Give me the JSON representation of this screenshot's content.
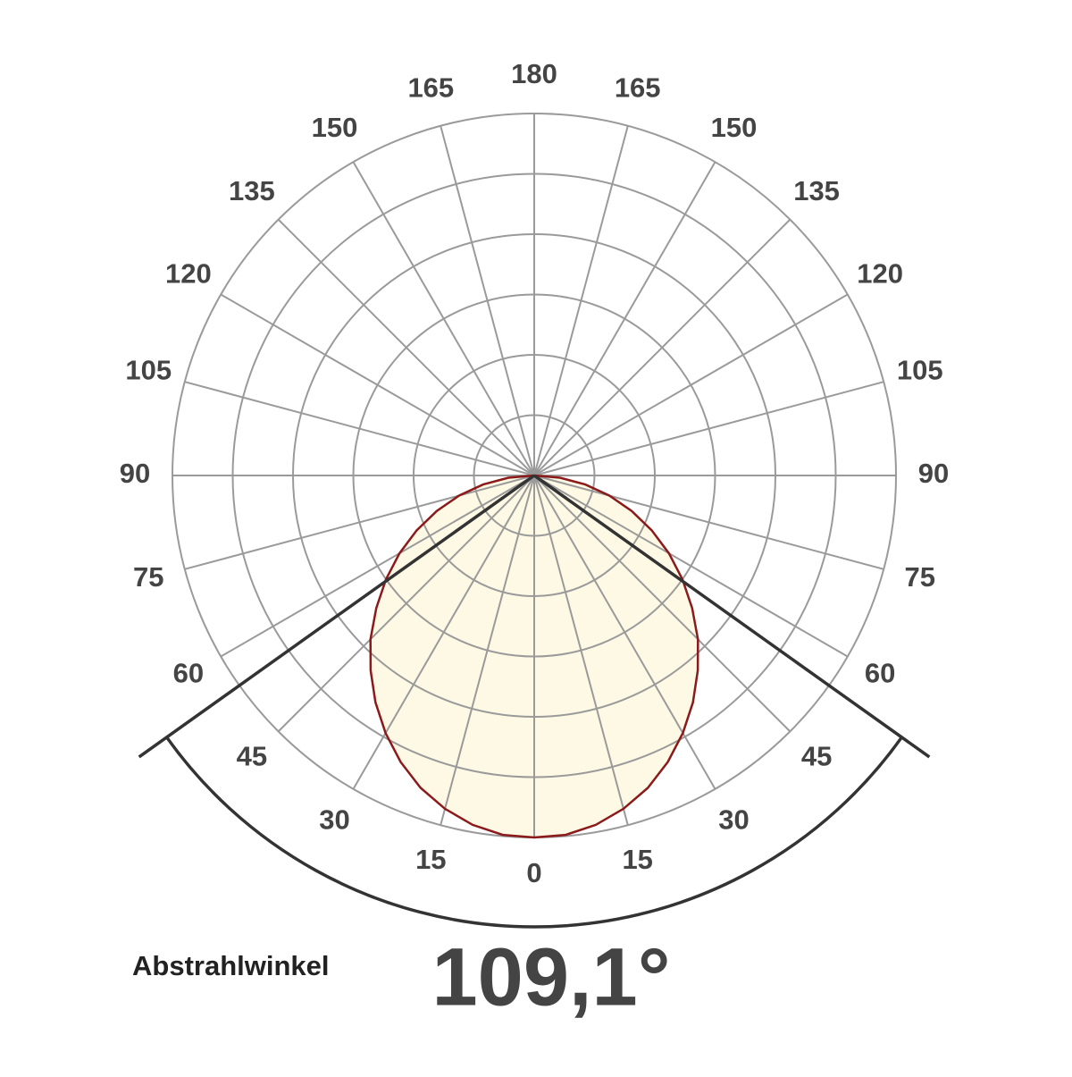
{
  "chart_data": {
    "type": "polar",
    "angles": [
      -90,
      -85,
      -80,
      -75,
      -70,
      -65,
      -60,
      -55,
      -50,
      -45,
      -40,
      -35,
      -30,
      -25,
      -20,
      -15,
      -10,
      -5,
      0,
      5,
      10,
      15,
      20,
      25,
      30,
      35,
      40,
      45,
      50,
      55,
      60,
      65,
      70,
      75,
      80,
      85,
      90
    ],
    "values": [
      0,
      0.43,
      0.86,
      1.29,
      1.72,
      2.15,
      2.58,
      3.0,
      3.42,
      3.84,
      4.22,
      4.59,
      4.93,
      5.24,
      5.51,
      5.72,
      5.88,
      5.98,
      6.0,
      5.98,
      5.88,
      5.72,
      5.51,
      5.24,
      4.93,
      4.59,
      4.22,
      3.84,
      3.42,
      3.0,
      2.58,
      2.15,
      1.72,
      1.29,
      0.86,
      0.43,
      0
    ],
    "color": "#8b1a1a",
    "fill": "#fdf9e4",
    "rlim": [
      0,
      6
    ],
    "rticks": [
      1,
      2,
      3,
      4,
      5,
      6
    ],
    "angle_ticks": [
      0,
      15,
      30,
      45,
      60,
      75,
      90,
      105,
      120,
      135,
      150,
      165,
      180
    ],
    "grid": true,
    "beam_angle": 109.1,
    "beam_angle_label": "109,1°",
    "beam_angle_title": "Abstrahlwinkel"
  }
}
